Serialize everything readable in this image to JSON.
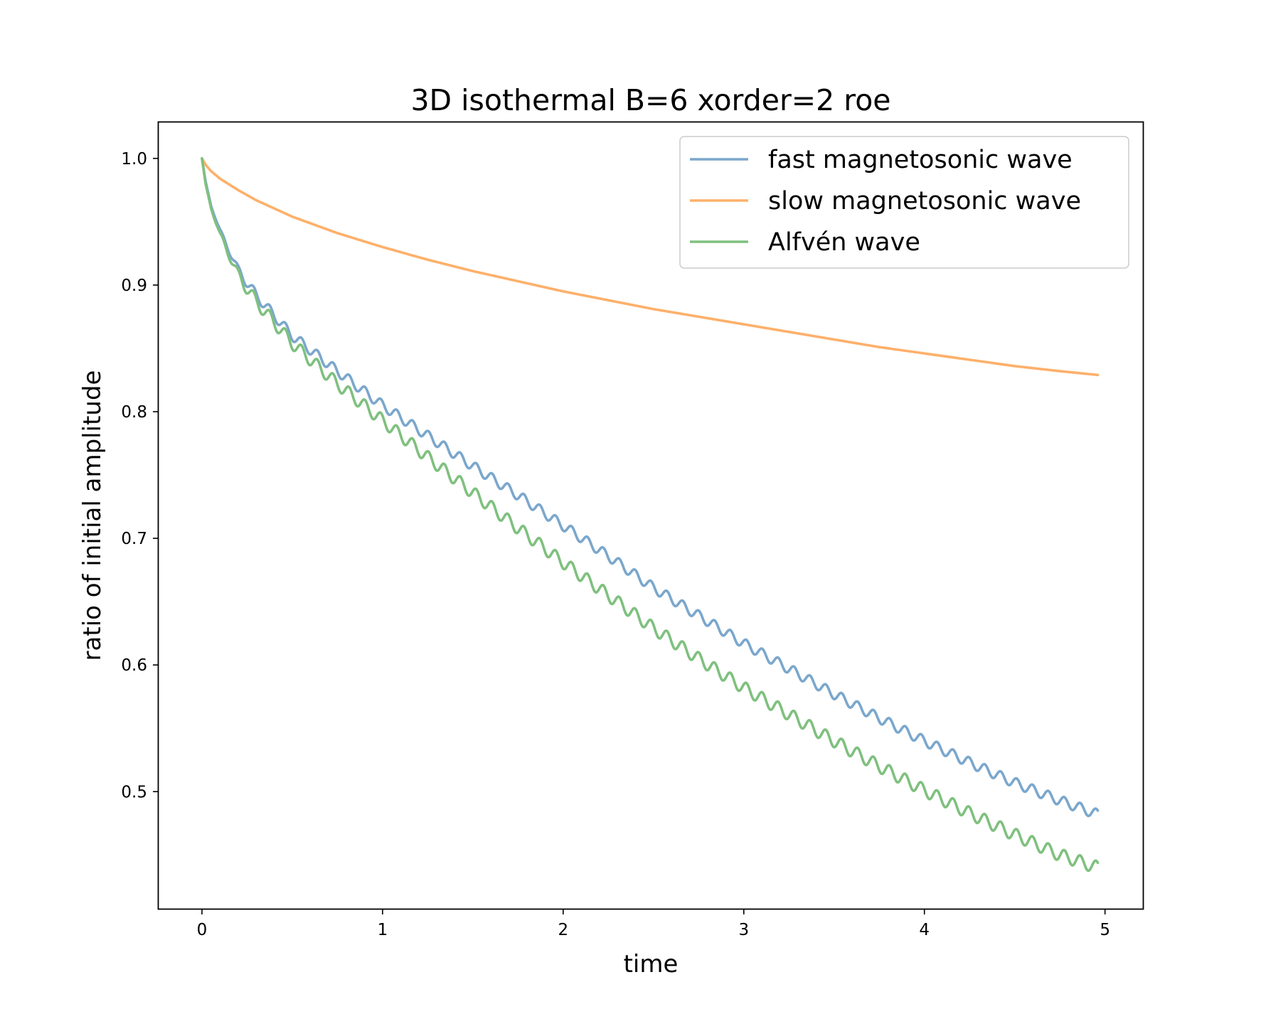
{
  "chart_data": {
    "type": "line",
    "title": "3D isothermal B=6 xorder=2 roe",
    "xlabel": "time",
    "ylabel": "ratio of initial amplitude",
    "xlim": [
      -0.24,
      5.21
    ],
    "ylim": [
      0.4075,
      1.0285
    ],
    "xticks": [
      0,
      1,
      2,
      3,
      4,
      5
    ],
    "yticks": [
      0.5,
      0.6,
      0.7,
      0.8,
      0.9,
      1.0
    ],
    "xtick_labels": [
      "0",
      "1",
      "2",
      "3",
      "4",
      "5"
    ],
    "ytick_labels": [
      "0.5",
      "0.6",
      "0.7",
      "0.8",
      "0.9",
      "1.0"
    ],
    "grid": false,
    "legend_position": "upper-right",
    "series": [
      {
        "name": "fast magnetosonic wave",
        "color": "#7ba7cc",
        "x": [
          0,
          0.02,
          0.05,
          0.1,
          0.2,
          0.3,
          0.5,
          0.75,
          1.0,
          1.25,
          1.5,
          1.75,
          2.0,
          2.25,
          2.5,
          2.75,
          3.0,
          3.25,
          3.5,
          3.75,
          4.0,
          4.25,
          4.5,
          4.75,
          4.96
        ],
        "y": [
          1.0,
          0.982,
          0.963,
          0.943,
          0.912,
          0.892,
          0.86,
          0.832,
          0.805,
          0.781,
          0.757,
          0.734,
          0.71,
          0.686,
          0.661,
          0.639,
          0.617,
          0.597,
          0.577,
          0.558,
          0.54,
          0.523,
          0.507,
          0.493,
          0.482
        ],
        "oscillation_amplitude": 0.004,
        "oscillation_period": 0.088
      },
      {
        "name": "slow magnetosonic wave",
        "color": "#fdb06a",
        "x": [
          0,
          0.02,
          0.05,
          0.1,
          0.2,
          0.3,
          0.5,
          0.75,
          1.0,
          1.25,
          1.5,
          1.75,
          2.0,
          2.25,
          2.5,
          2.75,
          3.0,
          3.25,
          3.5,
          3.75,
          4.0,
          4.25,
          4.5,
          4.75,
          4.96
        ],
        "y": [
          1.0,
          0.995,
          0.99,
          0.984,
          0.975,
          0.967,
          0.954,
          0.941,
          0.93,
          0.92,
          0.911,
          0.903,
          0.895,
          0.888,
          0.881,
          0.875,
          0.869,
          0.863,
          0.857,
          0.851,
          0.846,
          0.841,
          0.836,
          0.832,
          0.829
        ],
        "oscillation_amplitude": 0,
        "oscillation_period": 0.088
      },
      {
        "name": "Alfvén wave",
        "color": "#7fc07f",
        "x": [
          0,
          0.02,
          0.05,
          0.1,
          0.2,
          0.3,
          0.5,
          0.75,
          1.0,
          1.25,
          1.5,
          1.75,
          2.0,
          2.25,
          2.5,
          2.75,
          3.0,
          3.25,
          3.5,
          3.75,
          4.0,
          4.25,
          4.5,
          4.75,
          4.96
        ],
        "y": [
          1.0,
          0.98,
          0.961,
          0.94,
          0.908,
          0.887,
          0.854,
          0.822,
          0.793,
          0.764,
          0.736,
          0.708,
          0.681,
          0.655,
          0.629,
          0.605,
          0.582,
          0.561,
          0.54,
          0.52,
          0.501,
          0.483,
          0.466,
          0.45,
          0.44
        ],
        "oscillation_amplitude": 0.005,
        "oscillation_period": 0.088
      }
    ]
  }
}
